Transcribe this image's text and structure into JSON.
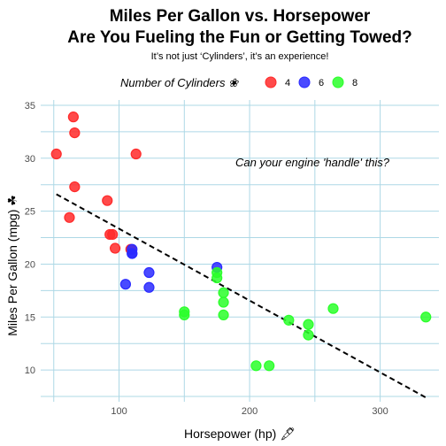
{
  "chart_data": {
    "type": "scatter",
    "title_line1": "Miles Per Gallon vs. Horsepower",
    "title_line2": "Are You Fueling the Fun or Getting Towed?",
    "subtitle": "It’s not just ‘Cylinders’, it’s an experience!",
    "xlabel": "Horsepower (hp) 🖋",
    "ylabel": "Miles Per Gallon (mpg) ☘",
    "legend_title": "Number of Cylinders ❀",
    "legend_position": "top",
    "annotation": "Can your engine 'handle' this?",
    "xlim": [
      40,
      345
    ],
    "ylim": [
      7,
      35.5
    ],
    "xticks": [
      100,
      200,
      300
    ],
    "xtick_labels": [
      "100",
      "200",
      "300"
    ],
    "yticks": [
      10,
      15,
      20,
      25,
      30,
      35
    ],
    "ytick_labels": [
      "10",
      "15",
      "20",
      "25",
      "30",
      "35"
    ],
    "grid": true,
    "series": [
      {
        "name": "4",
        "color": "#ff2a2a",
        "points": [
          [
            93,
            22.8
          ],
          [
            62,
            24.4
          ],
          [
            95,
            22.8
          ],
          [
            66,
            32.4
          ],
          [
            52,
            30.4
          ],
          [
            65,
            33.9
          ],
          [
            97,
            21.5
          ],
          [
            66,
            27.3
          ],
          [
            91,
            26.0
          ],
          [
            113,
            30.4
          ],
          [
            109,
            21.4
          ]
        ]
      },
      {
        "name": "6",
        "color": "#2a2aff",
        "points": [
          [
            110,
            21.0
          ],
          [
            110,
            21.0
          ],
          [
            110,
            21.4
          ],
          [
            105,
            18.1
          ],
          [
            123,
            19.2
          ],
          [
            123,
            17.8
          ],
          [
            175,
            19.7
          ]
        ]
      },
      {
        "name": "8",
        "color": "#2aff2a",
        "points": [
          [
            175,
            18.7
          ],
          [
            245,
            14.3
          ],
          [
            180,
            16.4
          ],
          [
            180,
            17.3
          ],
          [
            180,
            15.2
          ],
          [
            205,
            10.4
          ],
          [
            215,
            10.4
          ],
          [
            230,
            14.7
          ],
          [
            150,
            15.5
          ],
          [
            150,
            15.2
          ],
          [
            245,
            13.3
          ],
          [
            175,
            19.2
          ],
          [
            264,
            15.8
          ],
          [
            335,
            15.0
          ]
        ]
      }
    ],
    "trend_line": {
      "style": "dashed",
      "color": "#000000",
      "x": [
        52,
        335
      ],
      "y": [
        26.6,
        7.4
      ]
    }
  }
}
